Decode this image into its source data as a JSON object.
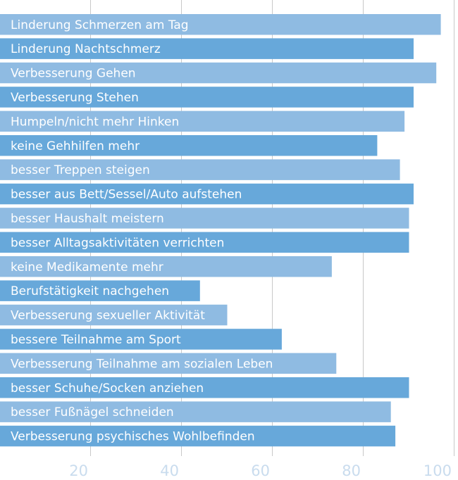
{
  "chart_data": {
    "type": "bar",
    "orientation": "horizontal",
    "categories": [
      "Linderung Schmerzen am Tag",
      "Linderung Nachtschmerz",
      "Verbesserung Gehen",
      "Verbesserung Stehen",
      "Humpeln/nicht mehr Hinken",
      "keine Gehhilfen mehr",
      "besser Treppen steigen",
      "besser aus Bett/Sessel/Auto aufstehen",
      "besser Haushalt meistern",
      "besser Alltagsaktivitäten verrichten",
      "keine Medikamente mehr",
      "Berufstätigkeit nachgehen",
      "Verbesserung sexueller Aktivität",
      "bessere Teilnahme am Sport",
      "Verbesserung Teilnahme am sozialen Leben",
      "besser Schuhe/Socken anziehen",
      "besser Fußnägel schneiden",
      "Verbesserung psychisches Wohlbefinden"
    ],
    "values": [
      97,
      91,
      96,
      91,
      89,
      83,
      88,
      91,
      90,
      90,
      73,
      44,
      50,
      62,
      74,
      90,
      86,
      87
    ],
    "xlim": [
      0,
      100
    ],
    "xticks": [
      "20",
      "40",
      "60",
      "80",
      "100"
    ],
    "grid": true,
    "colors": {
      "bar_light": "#8fbbe2",
      "bar_dark": "#67a8da",
      "grid": "#c8c8c8",
      "tick": "#c9dcee",
      "label": "#ffffff"
    }
  }
}
